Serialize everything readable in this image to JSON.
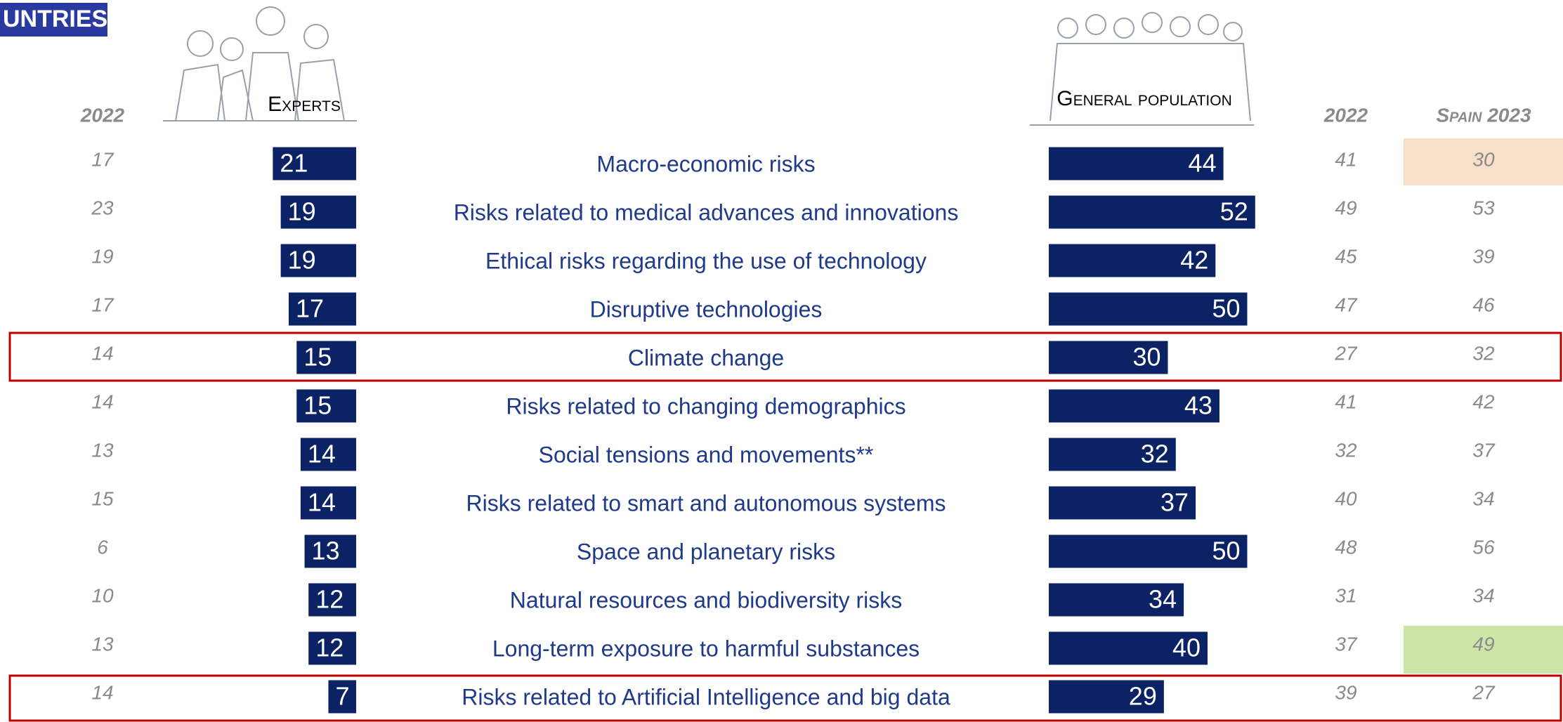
{
  "chart_data": {
    "type": "butterfly",
    "title": "UNTRIES",
    "categories": [
      "Macro-economic risks",
      "Risks related to medical advances and innovations",
      "Ethical risks regarding the use of technology",
      "Disruptive technologies",
      "Climate change",
      "Risks related to changing demographics",
      "Social tensions and movements**",
      "Risks related to smart and autonomous systems",
      "Space and planetary risks",
      "Natural resources and biodiversity risks",
      "Long-term exposure to harmful substances",
      "Risks related to Artificial Intelligence and big data"
    ],
    "series": [
      {
        "name": "Experts",
        "color": "#0b2265",
        "values": [
          21,
          19,
          19,
          17,
          15,
          15,
          14,
          14,
          13,
          12,
          12,
          7
        ]
      },
      {
        "name": "General population",
        "color": "#0b2265",
        "values": [
          44,
          52,
          42,
          50,
          30,
          43,
          32,
          37,
          50,
          34,
          40,
          29
        ]
      }
    ],
    "columns": [
      {
        "name": "2022",
        "values": [
          17,
          23,
          19,
          17,
          14,
          14,
          13,
          15,
          6,
          10,
          13,
          14
        ]
      },
      {
        "name": "2022",
        "values": [
          41,
          49,
          45,
          47,
          27,
          41,
          32,
          40,
          48,
          31,
          37,
          39
        ]
      },
      {
        "name": "Spain 2023",
        "values": [
          30,
          53,
          39,
          46,
          32,
          42,
          37,
          34,
          56,
          34,
          49,
          27
        ]
      }
    ]
  }
}
